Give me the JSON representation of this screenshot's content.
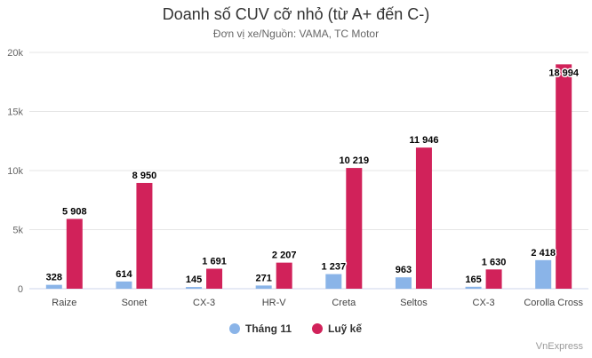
{
  "chart_data": {
    "type": "bar",
    "title": "Doanh số CUV cỡ nhỏ (từ A+ đến C-)",
    "subtitle": "Đơn vị xe/Nguồn: VAMA, TC Motor",
    "categories": [
      "Raize",
      "Sonet",
      "CX-3",
      "HR-V",
      "Creta",
      "Seltos",
      "CX-3",
      "Corolla Cross"
    ],
    "series": [
      {
        "name": "Tháng 11",
        "color": "#8ab4e8",
        "values": [
          328,
          614,
          145,
          271,
          1237,
          963,
          165,
          2418
        ],
        "labels": [
          "328",
          "614",
          "145",
          "271",
          "1 237",
          "963",
          "165",
          "2 418"
        ]
      },
      {
        "name": "Luỹ kế",
        "color": "#d1225a",
        "values": [
          5908,
          8950,
          1691,
          2207,
          10219,
          11946,
          1630,
          18994
        ],
        "labels": [
          "5 908",
          "8 950",
          "1 691",
          "2 207",
          "10 219",
          "11 946",
          "1 630",
          "18 994"
        ]
      }
    ],
    "ylim": [
      0,
      20000
    ],
    "yticks": [
      0,
      5000,
      10000,
      15000,
      20000
    ],
    "ytick_labels": [
      "0",
      "5k",
      "10k",
      "15k",
      "20k"
    ],
    "grid": true,
    "legend_position": "bottom-center"
  },
  "credit": "VnExpress"
}
